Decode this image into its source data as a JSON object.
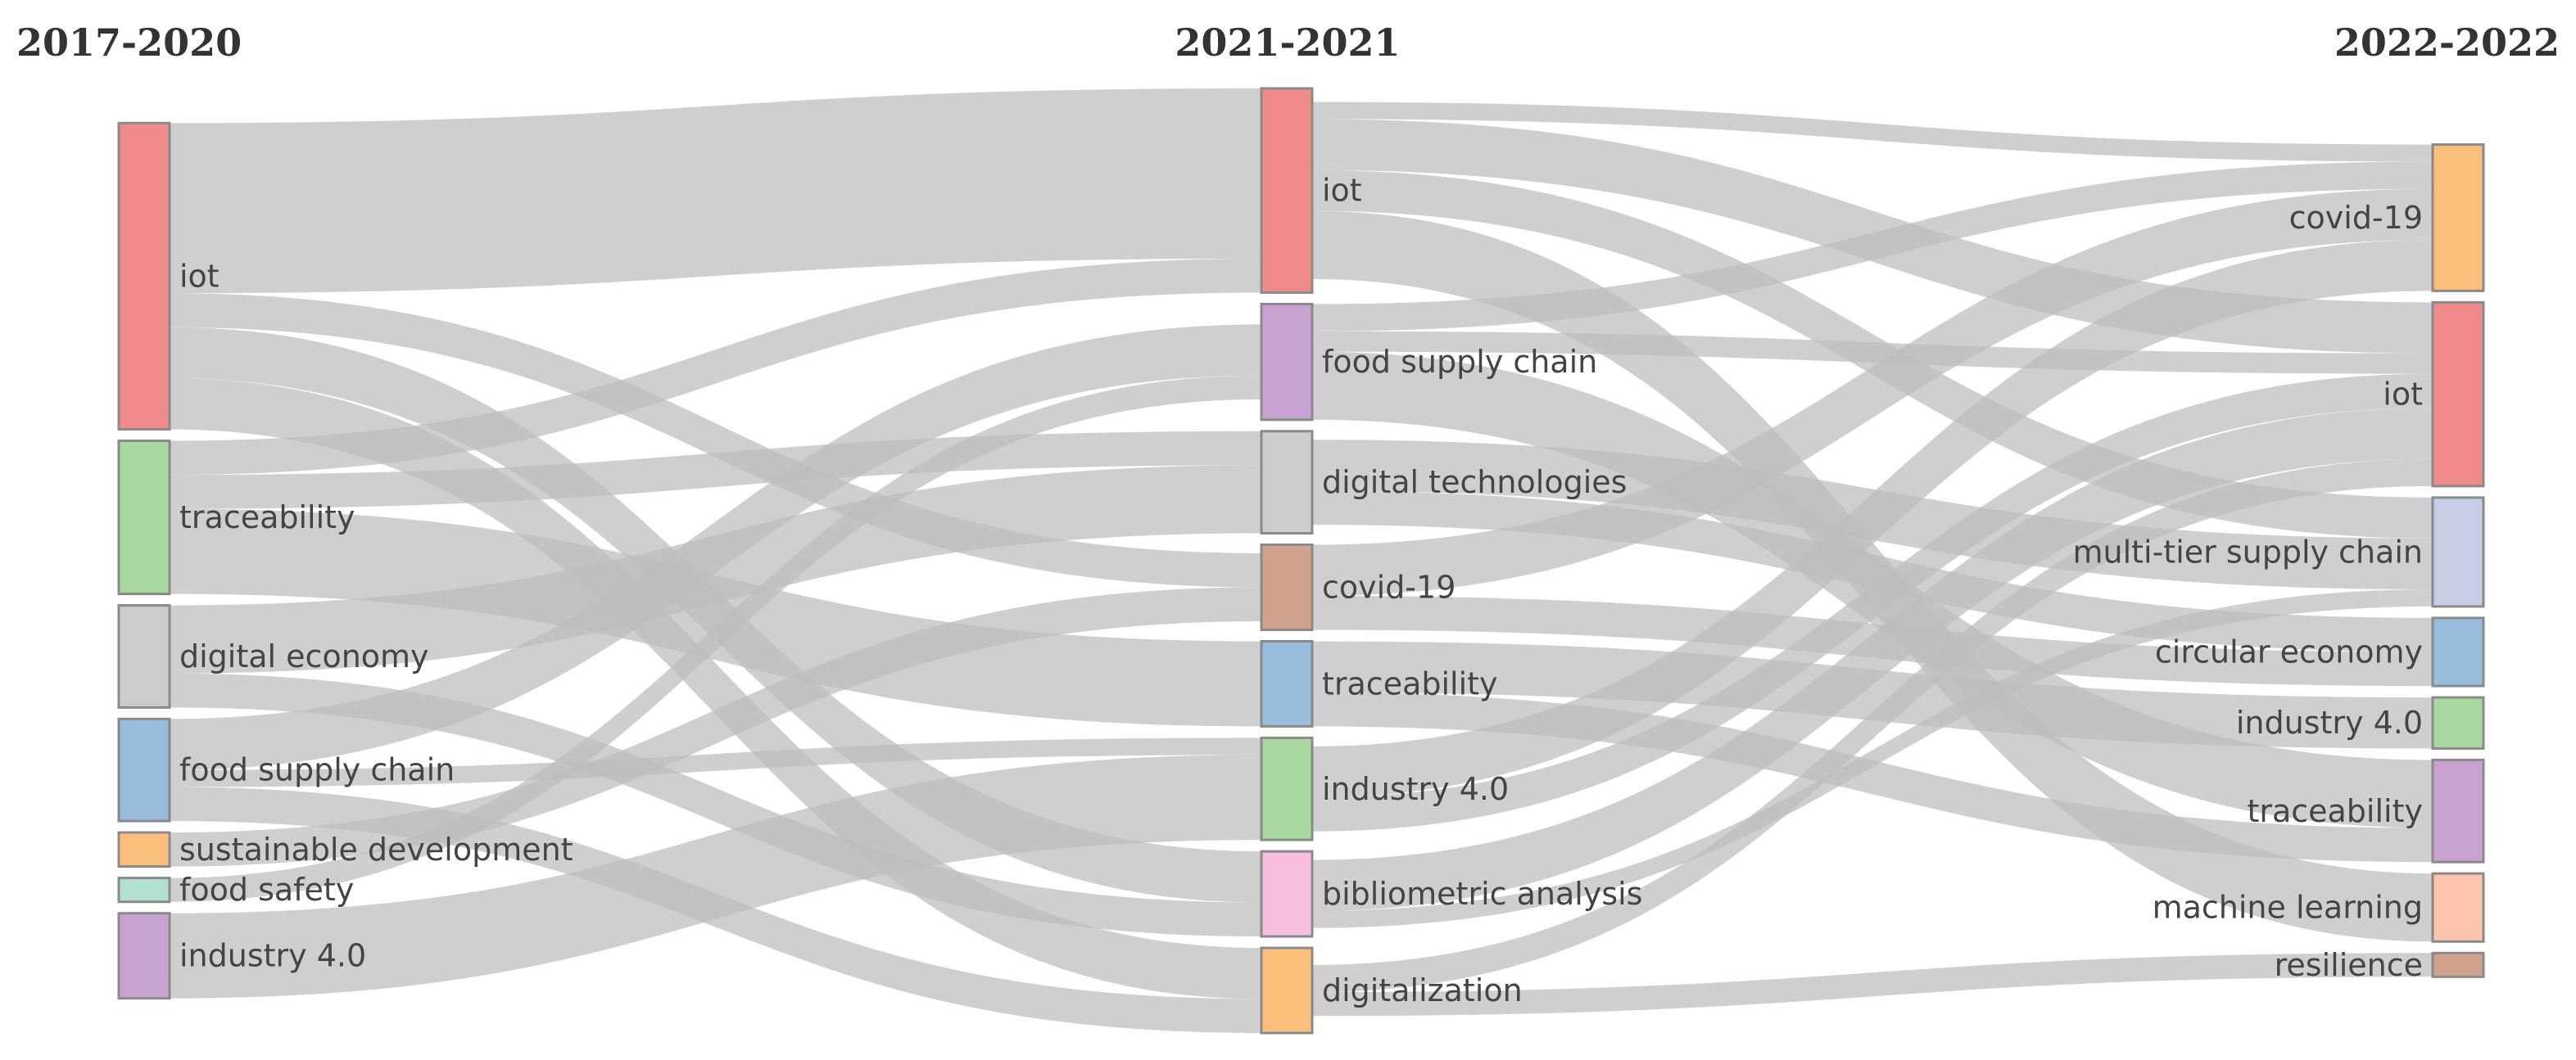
{
  "chart_data": {
    "type": "sankey",
    "periods": [
      {
        "title": "2017-2020",
        "nodes": [
          {
            "name": "iot",
            "color": "#f08a8a"
          },
          {
            "name": "traceability",
            "color": "#a8d8a0"
          },
          {
            "name": "digital economy",
            "color": "#cccccc"
          },
          {
            "name": "food supply chain",
            "color": "#98bcdc"
          },
          {
            "name": "sustainable development",
            "color": "#fbbf7c"
          },
          {
            "name": "food safety",
            "color": "#b3e0d3"
          },
          {
            "name": "industry 4.0",
            "color": "#c8a2d0"
          }
        ]
      },
      {
        "title": "2021-2021",
        "nodes": [
          {
            "name": "iot",
            "color": "#f08a8a"
          },
          {
            "name": "food supply chain",
            "color": "#c8a2d0"
          },
          {
            "name": "digital technologies",
            "color": "#cccccc"
          },
          {
            "name": "covid-19",
            "color": "#d0a28e"
          },
          {
            "name": "traceability",
            "color": "#98bcdc"
          },
          {
            "name": "industry 4.0",
            "color": "#a8d8a0"
          },
          {
            "name": "bibliometric analysis",
            "color": "#f7bde0"
          },
          {
            "name": "digitalization",
            "color": "#fbbf7c"
          }
        ]
      },
      {
        "title": "2022-2022",
        "nodes": [
          {
            "name": "covid-19",
            "color": "#fbbf7c"
          },
          {
            "name": "iot",
            "color": "#f08a8a"
          },
          {
            "name": "multi-tier supply chain",
            "color": "#c8cde6"
          },
          {
            "name": "circular economy",
            "color": "#98bcdc"
          },
          {
            "name": "industry 4.0",
            "color": "#a8d8a0"
          },
          {
            "name": "traceability",
            "color": "#c8a2d0"
          },
          {
            "name": "machine learning",
            "color": "#fdc5ae"
          },
          {
            "name": "resilience",
            "color": "#d0a28e"
          }
        ]
      }
    ],
    "flows_1_2": [
      {
        "from": "iot",
        "to": "iot",
        "value": 5
      },
      {
        "from": "iot",
        "to": "covid-19",
        "value": 1
      },
      {
        "from": "iot",
        "to": "bibliometric analysis",
        "value": 1.5
      },
      {
        "from": "iot",
        "to": "digitalization",
        "value": 1.5
      },
      {
        "from": "traceability",
        "to": "iot",
        "value": 1
      },
      {
        "from": "traceability",
        "to": "digital technologies",
        "value": 1
      },
      {
        "from": "traceability",
        "to": "traceability",
        "value": 2.5
      },
      {
        "from": "digital economy",
        "to": "digital technologies",
        "value": 2
      },
      {
        "from": "digital economy",
        "to": "bibliometric analysis",
        "value": 1
      },
      {
        "from": "food supply chain",
        "to": "food supply chain",
        "value": 1.5
      },
      {
        "from": "food supply chain",
        "to": "industry 4.0",
        "value": 0.5
      },
      {
        "from": "food supply chain",
        "to": "digitalization",
        "value": 1
      },
      {
        "from": "sustainable development",
        "to": "covid-19",
        "value": 1
      },
      {
        "from": "food safety",
        "to": "food supply chain",
        "value": 0.7
      },
      {
        "from": "industry 4.0",
        "to": "industry 4.0",
        "value": 2.5
      }
    ],
    "flows_2_3": [
      {
        "from": "iot",
        "to": "covid-19",
        "value": 0.5
      },
      {
        "from": "iot",
        "to": "iot",
        "value": 1.5
      },
      {
        "from": "iot",
        "to": "multi-tier supply chain",
        "value": 1.2
      },
      {
        "from": "iot",
        "to": "machine learning",
        "value": 2
      },
      {
        "from": "food supply chain",
        "to": "covid-19",
        "value": 0.8
      },
      {
        "from": "food supply chain",
        "to": "iot",
        "value": 0.6
      },
      {
        "from": "food supply chain",
        "to": "traceability",
        "value": 2
      },
      {
        "from": "digital technologies",
        "to": "multi-tier supply chain",
        "value": 1.5
      },
      {
        "from": "digital technologies",
        "to": "circular economy",
        "value": 1
      },
      {
        "from": "covid-19",
        "to": "covid-19",
        "value": 1.5
      },
      {
        "from": "covid-19",
        "to": "circular economy",
        "value": 1
      },
      {
        "from": "traceability",
        "to": "traceability",
        "value": 1
      },
      {
        "from": "traceability",
        "to": "industry 4.0",
        "value": 1.5
      },
      {
        "from": "industry 4.0",
        "to": "covid-19",
        "value": 1.5
      },
      {
        "from": "industry 4.0",
        "to": "iot",
        "value": 1
      },
      {
        "from": "bibliometric analysis",
        "to": "iot",
        "value": 1.5
      },
      {
        "from": "bibliometric analysis",
        "to": "multi-tier supply chain",
        "value": 0.5
      },
      {
        "from": "digitalization",
        "to": "iot",
        "value": 0.8
      },
      {
        "from": "digitalization",
        "to": "resilience",
        "value": 0.7
      }
    ]
  }
}
